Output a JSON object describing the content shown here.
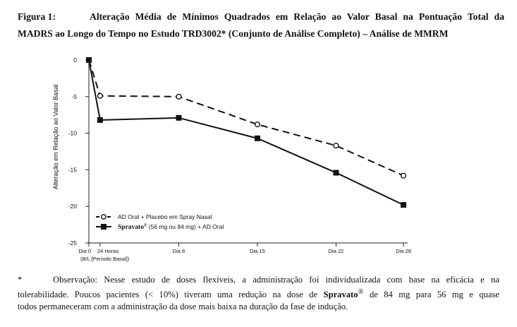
{
  "caption": {
    "label": "Figura 1:",
    "text_line1": "Alteração Média de Mínimos Quadrados em Relação ao Valor Basal na Pontuação Total da",
    "text_line2": "MADRS ao Longo do Tempo no Estudo TRD3002* (Conjunto de Análise Completo) – Análise de MMRM"
  },
  "chart_data": {
    "type": "line",
    "title": "",
    "xlabel": "",
    "ylabel": "Alteração em Relação ao Valor Basal",
    "ylim": [
      -25,
      0
    ],
    "yticks": [
      0,
      -5,
      -10,
      -15,
      -20,
      -25
    ],
    "xticks": [
      {
        "day": 0,
        "label": "Dia 0"
      },
      {
        "day": 1,
        "label": "24 Horas"
      },
      {
        "day": 8,
        "label": "Dia 8"
      },
      {
        "day": 15,
        "label": "Dia 15"
      },
      {
        "day": 22,
        "label": "Dia 22"
      },
      {
        "day": 28,
        "label": "Dia 28"
      }
    ],
    "baseline_sublabel": "(B/L [Período Basal])",
    "grid": false,
    "legend_position": "bottom-left",
    "series": [
      {
        "name": "AD Oral + Placebo em Spray Nasal",
        "marker": "open-circle",
        "line": "dashed",
        "x": [
          0,
          1,
          8,
          15,
          22,
          28
        ],
        "values": [
          0,
          -4.9,
          -5.0,
          -8.8,
          -11.7,
          -15.8
        ]
      },
      {
        "name_bold": "Spravato",
        "name_sup": "®",
        "name_rest": " (56 mg ou 84 mg) + AD Oral",
        "marker": "filled-square",
        "line": "solid",
        "x": [
          0,
          1,
          8,
          15,
          22,
          28
        ],
        "values": [
          0,
          -8.2,
          -7.9,
          -10.7,
          -15.4,
          -19.8
        ]
      }
    ]
  },
  "footnote": {
    "marker": "*",
    "line1": "Observação: Nesse estudo de doses flexíveis, a administração foi individualizada com base na eficácia e na",
    "line2_a": "tolerabilidade. Poucos pacientes (< 10%) tiveram uma redução na dose de ",
    "line2_bold": "Spravato",
    "line2_sup": "®",
    "line2_b": " de 84 mg para 56 mg e quase",
    "line3": "todos permaneceram com a administração da dose mais baixa na duração da fase de indução."
  },
  "colors": {
    "ink": "#111111",
    "axis": "#222222"
  }
}
